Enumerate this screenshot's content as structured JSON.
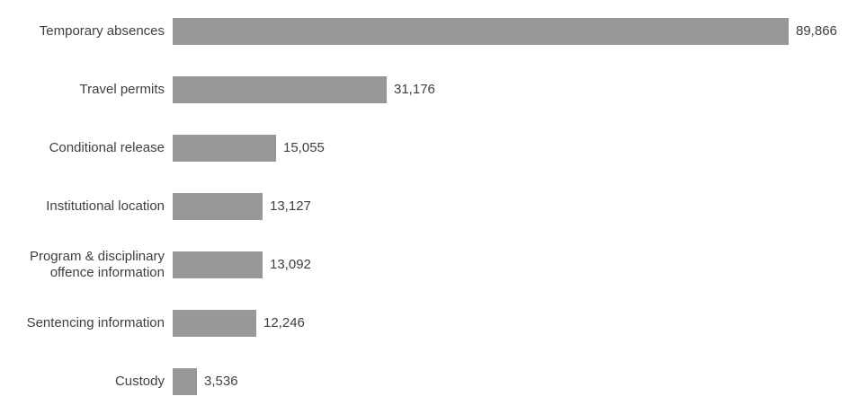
{
  "chart_data": {
    "type": "bar",
    "orientation": "horizontal",
    "title": "",
    "xlabel": "",
    "ylabel": "",
    "grid": false,
    "legend": false,
    "xlim": [
      0,
      93000
    ],
    "categories": [
      "Temporary absences",
      "Travel permits",
      "Conditional release",
      "Institutional location",
      "Program & disciplinary offence information",
      "Sentencing information",
      "Custody"
    ],
    "values": [
      89866,
      31176,
      15055,
      13127,
      13092,
      12246,
      3536
    ],
    "value_labels": [
      "89,866",
      "31,176",
      "15,055",
      "13,127",
      "13,092",
      "12,246",
      "3,536"
    ],
    "bar_color": "#989898",
    "text_color": "#3f3f3f",
    "background_color": "#ffffff"
  }
}
